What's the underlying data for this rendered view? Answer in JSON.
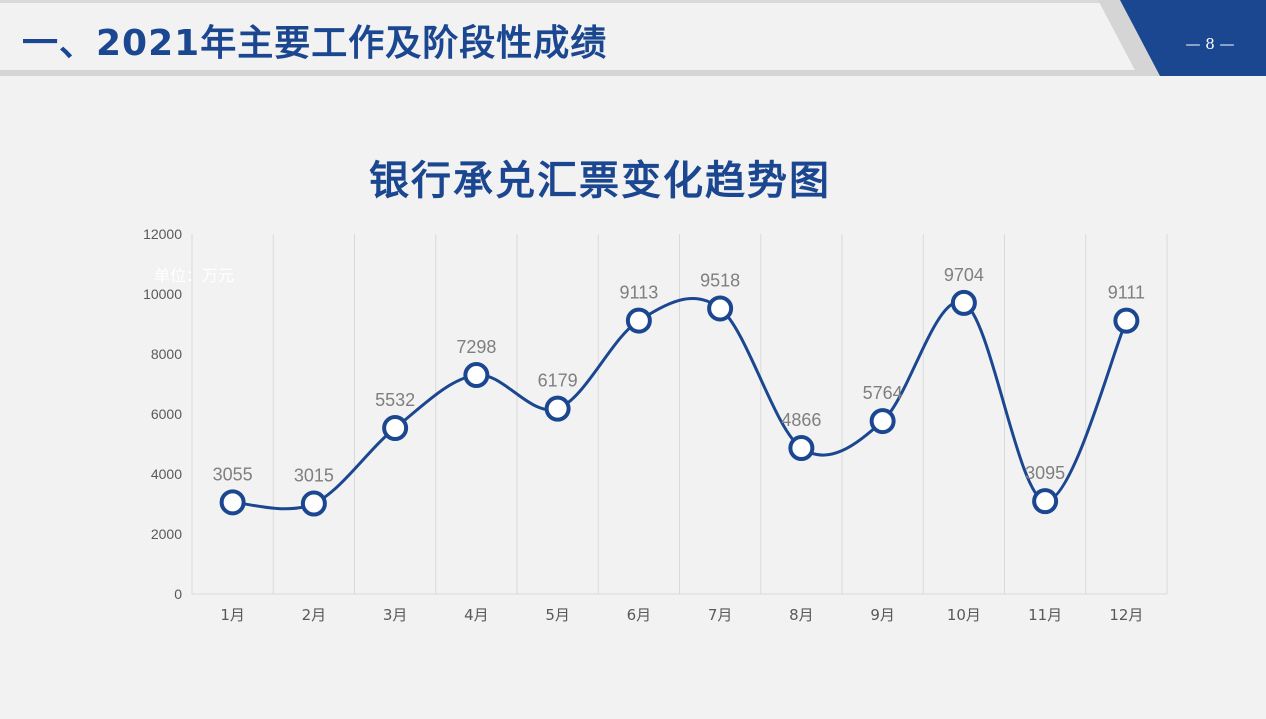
{
  "header": {
    "title": "一、2021年主要工作及阶段性成绩",
    "page_number": "— 8 —"
  },
  "colors": {
    "brand_blue": "#1b4690",
    "background": "#f2f2f2",
    "grid": "#d9d9d9",
    "label_gray": "#7f7f7f"
  },
  "chart_data": {
    "type": "line",
    "title": "银行承兑汇票变化趋势图",
    "unit_label": "单位：万元",
    "categories": [
      "1月",
      "2月",
      "3月",
      "4月",
      "5月",
      "6月",
      "7月",
      "8月",
      "9月",
      "10月",
      "11月",
      "12月"
    ],
    "values": [
      3055,
      3015,
      5532,
      7298,
      6179,
      9113,
      9518,
      4866,
      5764,
      9704,
      3095,
      9111
    ],
    "y_ticks": [
      "0",
      "2000",
      "4000",
      "6000",
      "8000",
      "10000",
      "12000"
    ],
    "ylim": [
      0,
      12000
    ],
    "smooth": true,
    "vertical_gridlines": true,
    "data_labels": true,
    "legend": "none"
  }
}
